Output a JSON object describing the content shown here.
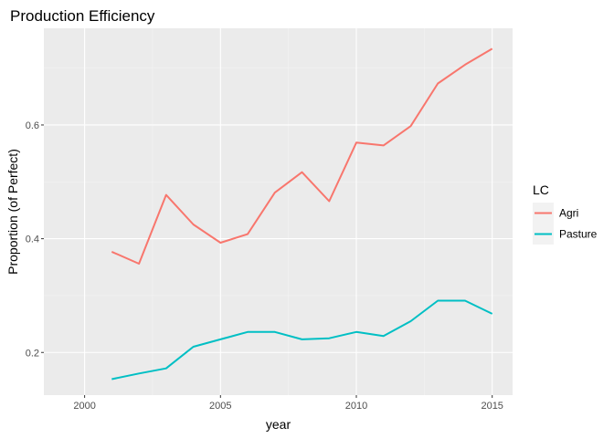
{
  "chart_data": {
    "type": "line",
    "title": "Production Efficiency",
    "xlabel": "year",
    "ylabel": "Proportion (of Perfect)",
    "xlim": [
      1998.5,
      2015.75
    ],
    "ylim": [
      0.125,
      0.77
    ],
    "x_ticks": [
      2000,
      2005,
      2010,
      2015
    ],
    "y_ticks": [
      0.2,
      0.4,
      0.6
    ],
    "x_tick_labels": [
      "2000",
      "2005",
      "2010",
      "2015"
    ],
    "y_tick_labels": [
      "0.2",
      "0.4",
      "0.6"
    ],
    "grid": true,
    "legend": {
      "title": "LC",
      "placement": "right"
    },
    "x": [
      2001,
      2002,
      2003,
      2004,
      2005,
      2006,
      2007,
      2008,
      2009,
      2010,
      2011,
      2012,
      2013,
      2014,
      2015
    ],
    "series": [
      {
        "name": "Agri",
        "color": "#f8766d",
        "values": [
          0.377,
          0.356,
          0.477,
          0.425,
          0.393,
          0.408,
          0.481,
          0.517,
          0.466,
          0.569,
          0.564,
          0.598,
          0.673,
          0.706,
          0.734
        ]
      },
      {
        "name": "Pasture",
        "color": "#00bfc4",
        "values": [
          0.153,
          0.163,
          0.172,
          0.21,
          0.223,
          0.236,
          0.236,
          0.223,
          0.225,
          0.236,
          0.229,
          0.255,
          0.291,
          0.291,
          0.268
        ]
      }
    ]
  },
  "colors": {
    "panel_background": "#ebebeb",
    "grid_major": "#ffffff",
    "grid_minor": "#f4f4f4"
  }
}
